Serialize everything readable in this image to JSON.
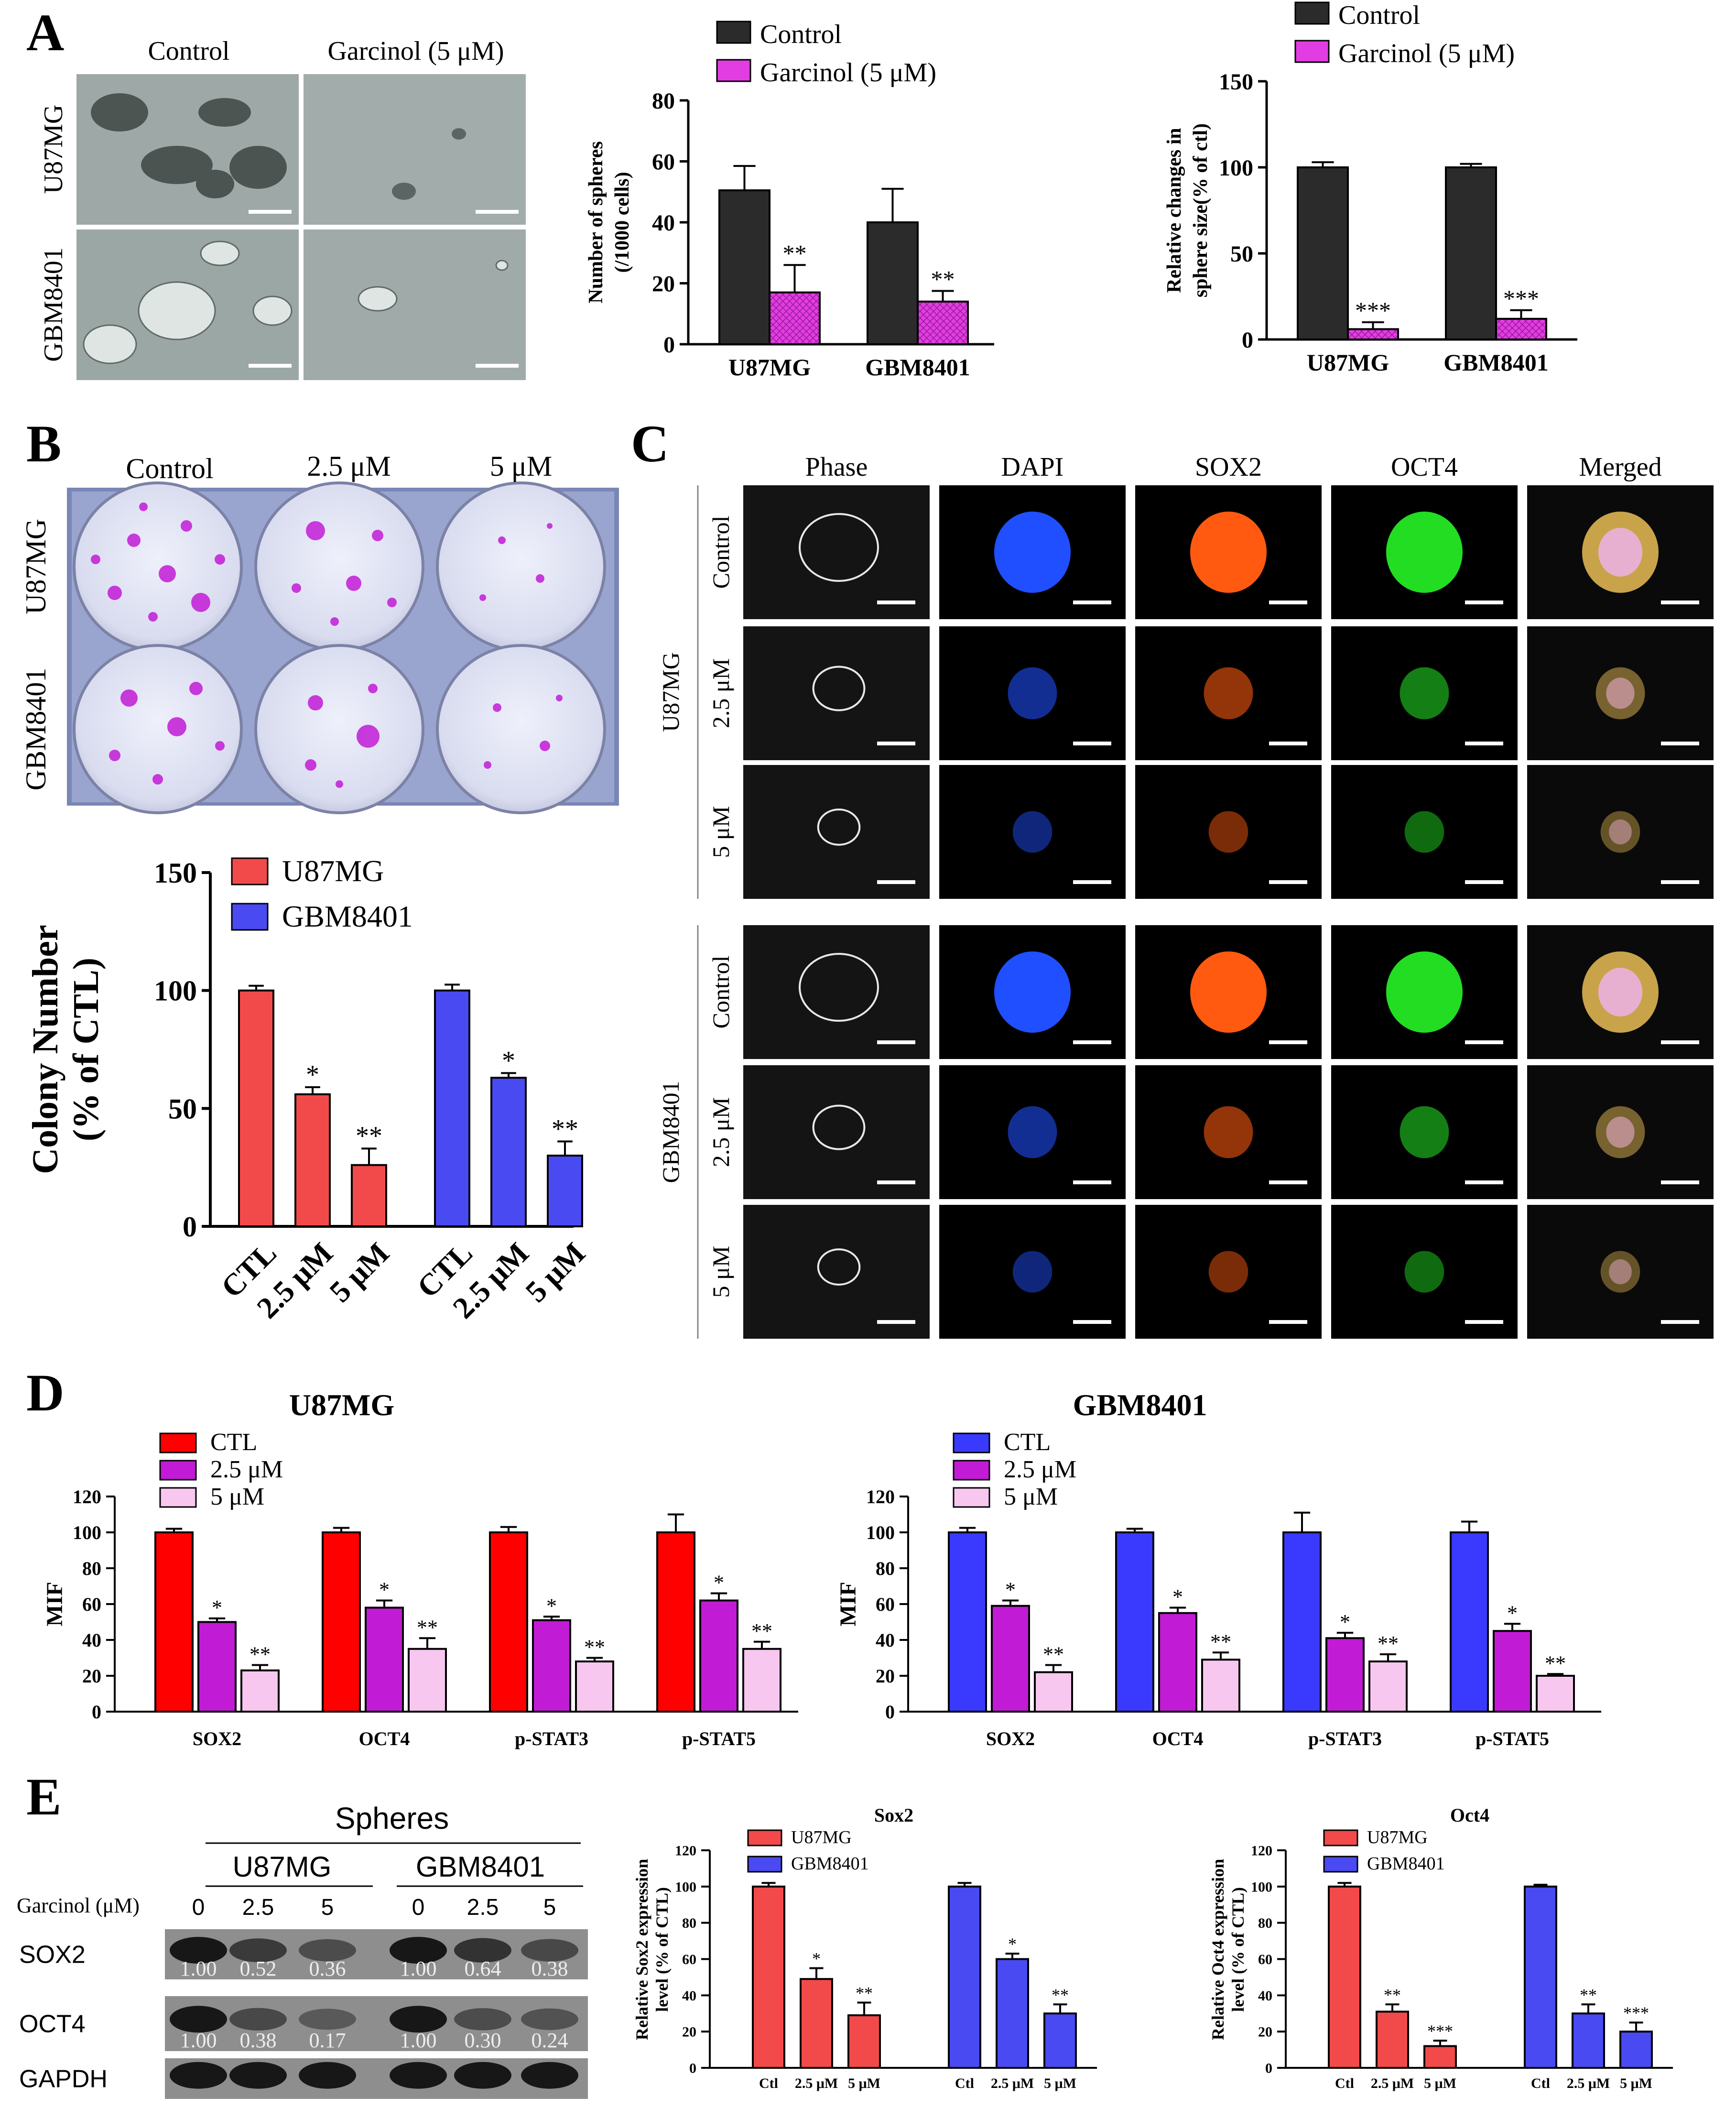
{
  "panels": {
    "A": {
      "letter": "A",
      "micro": {
        "cols": [
          "Control",
          "Garcinol  (5 μM)"
        ],
        "rows": [
          "U87MG",
          "GBM8401"
        ]
      }
    },
    "B": {
      "letter": "B",
      "plate": {
        "cols": [
          "Control",
          "2.5 μM",
          "5 μM"
        ],
        "rows": [
          "U87MG",
          "GBM8401"
        ]
      }
    },
    "C": {
      "letter": "C",
      "cols": [
        "Phase",
        "DAPI",
        "SOX2",
        "OCT4",
        "Merged"
      ],
      "groups": [
        {
          "name": "U87MG",
          "rows": [
            "Control",
            "2.5 μM",
            "5 μM"
          ]
        },
        {
          "name": "GBM8401",
          "rows": [
            "Control",
            "2.5 μM",
            "5 μM"
          ]
        }
      ]
    },
    "D": {
      "letter": "D"
    },
    "E": {
      "letter": "E",
      "blot": {
        "title": "Spheres",
        "cells": [
          "U87MG",
          "GBM8401"
        ],
        "treatment_label": "Garcinol (μM)",
        "doses": [
          "0",
          "2.5",
          "5",
          "0",
          "2.5",
          "5"
        ],
        "bands": [
          {
            "name": "SOX2",
            "values": [
              "1.00",
              "0.52",
              "0.36",
              "1.00",
              "0.64",
              "0.38"
            ],
            "intensity": [
              1.0,
              0.6,
              0.4,
              1.0,
              0.7,
              0.45
            ]
          },
          {
            "name": "OCT4",
            "values": [
              "1.00",
              "0.38",
              "0.17",
              "1.00",
              "0.30",
              "0.24"
            ],
            "intensity": [
              1.0,
              0.45,
              0.25,
              1.0,
              0.4,
              0.32
            ]
          },
          {
            "name": "GAPDH",
            "values": [],
            "intensity": [
              1.0,
              1.0,
              1.0,
              1.0,
              1.0,
              1.0
            ]
          }
        ]
      }
    }
  },
  "colors": {
    "black_bar": "#2b2b2b",
    "magenta": "#e23de2",
    "red": "#f24a4a",
    "blue": "#4a4af2",
    "pure_red": "#ff0000",
    "pure_blue": "#3a3aff",
    "purple": "#c21bd6",
    "pink": "#f7c7ef"
  },
  "chart_data": [
    {
      "id": "A1",
      "type": "bar",
      "categories": [
        "U87MG",
        "GBM8401"
      ],
      "series": [
        {
          "name": "Control",
          "values": [
            50.5,
            40
          ],
          "errors": [
            8,
            11
          ],
          "sig": [
            "",
            ""
          ]
        },
        {
          "name": "Garcinol (5 μM)",
          "values": [
            17,
            14
          ],
          "errors": [
            9,
            3.5
          ],
          "sig": [
            "**",
            "**"
          ]
        }
      ],
      "ylabel": "Number of spheres\n(/1000 cells)",
      "ylim": [
        0,
        80
      ],
      "yticks": [
        0,
        20,
        40,
        60,
        80
      ]
    },
    {
      "id": "A2",
      "type": "bar",
      "categories": [
        "U87MG",
        "GBM8401"
      ],
      "series": [
        {
          "name": "Control",
          "values": [
            100,
            100
          ],
          "errors": [
            3,
            2
          ],
          "sig": [
            "",
            ""
          ]
        },
        {
          "name": "Garcinol (5 μM)",
          "values": [
            6,
            12
          ],
          "errors": [
            4,
            5
          ],
          "sig": [
            "***",
            "***"
          ]
        }
      ],
      "ylabel": "Relative changes in\nsphere size(% of ctl)",
      "ylim": [
        0,
        150
      ],
      "yticks": [
        0,
        50,
        100,
        150
      ]
    },
    {
      "id": "B1",
      "type": "bar",
      "groups": [
        {
          "name": "U87MG",
          "labels": [
            "CTL",
            "2.5 μM",
            "5 μM"
          ],
          "values": [
            100,
            56,
            26
          ],
          "errors": [
            2,
            3,
            7
          ],
          "sig": [
            "",
            "*",
            "**"
          ]
        },
        {
          "name": "GBM8401",
          "labels": [
            "CTL",
            "2.5 μM",
            "5 μM"
          ],
          "values": [
            100,
            63,
            30
          ],
          "errors": [
            2.5,
            2,
            6
          ],
          "sig": [
            "",
            "*",
            "**"
          ]
        }
      ],
      "ylabel": "Colony Number\n(% of CTL)",
      "ylim": [
        0,
        150
      ],
      "yticks": [
        0,
        50,
        100,
        150
      ]
    },
    {
      "id": "D1",
      "type": "bar",
      "title": "U87MG",
      "categories": [
        "SOX2",
        "OCT4",
        "p-STAT3",
        "p-STAT5"
      ],
      "series": [
        {
          "name": "CTL",
          "values": [
            100,
            100,
            100,
            100
          ],
          "errors": [
            2,
            2.5,
            3,
            10
          ],
          "sig": [
            "",
            "",
            "",
            ""
          ]
        },
        {
          "name": "2.5 μM",
          "values": [
            50,
            58,
            51,
            62
          ],
          "errors": [
            2,
            4,
            2,
            4
          ],
          "sig": [
            "*",
            "*",
            "*",
            "*"
          ]
        },
        {
          "name": "5 μM",
          "values": [
            23,
            35,
            28,
            35
          ],
          "errors": [
            3,
            6,
            2,
            4
          ],
          "sig": [
            "**",
            "**",
            "**",
            "**"
          ]
        }
      ],
      "ylabel": "MIF",
      "ylim": [
        0,
        120
      ],
      "yticks": [
        0,
        20,
        40,
        60,
        80,
        100,
        120
      ]
    },
    {
      "id": "D2",
      "type": "bar",
      "title": "GBM8401",
      "categories": [
        "SOX2",
        "OCT4",
        "p-STAT3",
        "p-STAT5"
      ],
      "series": [
        {
          "name": "CTL",
          "values": [
            100,
            100,
            100,
            100
          ],
          "errors": [
            2.5,
            2,
            11,
            6
          ],
          "sig": [
            "",
            "",
            "",
            ""
          ]
        },
        {
          "name": "2.5 μM",
          "values": [
            59,
            55,
            41,
            45
          ],
          "errors": [
            3,
            3,
            3,
            4
          ],
          "sig": [
            "*",
            "*",
            "*",
            "*"
          ]
        },
        {
          "name": "5 μM",
          "values": [
            22,
            29,
            28,
            20
          ],
          "errors": [
            4,
            4,
            4,
            1
          ],
          "sig": [
            "**",
            "**",
            "**",
            "**"
          ]
        }
      ],
      "ylabel": "MIF",
      "ylim": [
        0,
        120
      ],
      "yticks": [
        0,
        20,
        40,
        60,
        80,
        100,
        120
      ]
    },
    {
      "id": "E1",
      "type": "bar",
      "title": "Sox2",
      "legend": [
        "U87MG",
        "GBM8401"
      ],
      "groups": [
        {
          "labels": [
            "Ctl",
            "2.5 μM",
            "5 μM"
          ],
          "values": [
            100,
            49,
            29
          ],
          "errors": [
            2,
            6,
            7
          ],
          "sig": [
            "",
            "*",
            "**"
          ]
        },
        {
          "labels": [
            "Ctl",
            "2.5 μM",
            "5 μM"
          ],
          "values": [
            100,
            60,
            30
          ],
          "errors": [
            2,
            3,
            5
          ],
          "sig": [
            "",
            "*",
            "**"
          ]
        }
      ],
      "ylabel": "Relative Sox2 expression\nlevel  (% of CTL)",
      "ylim": [
        0,
        120
      ],
      "yticks": [
        0,
        20,
        40,
        60,
        80,
        100,
        120
      ]
    },
    {
      "id": "E2",
      "type": "bar",
      "title": "Oct4",
      "legend": [
        "U87MG",
        "GBM8401"
      ],
      "groups": [
        {
          "labels": [
            "Ctl",
            "2.5 μM",
            "5 μM"
          ],
          "values": [
            100,
            31,
            12
          ],
          "errors": [
            2,
            4,
            3
          ],
          "sig": [
            "",
            "**",
            "***"
          ]
        },
        {
          "labels": [
            "Ctl",
            "2.5 μM",
            "5 μM"
          ],
          "values": [
            100,
            30,
            20
          ],
          "errors": [
            1,
            5,
            5
          ],
          "sig": [
            "",
            "**",
            "***"
          ]
        }
      ],
      "ylabel": "Relative Oct4 expression\nlevel  (% of CTL)",
      "ylim": [
        0,
        120
      ],
      "yticks": [
        0,
        20,
        40,
        60,
        80,
        100,
        120
      ]
    }
  ]
}
